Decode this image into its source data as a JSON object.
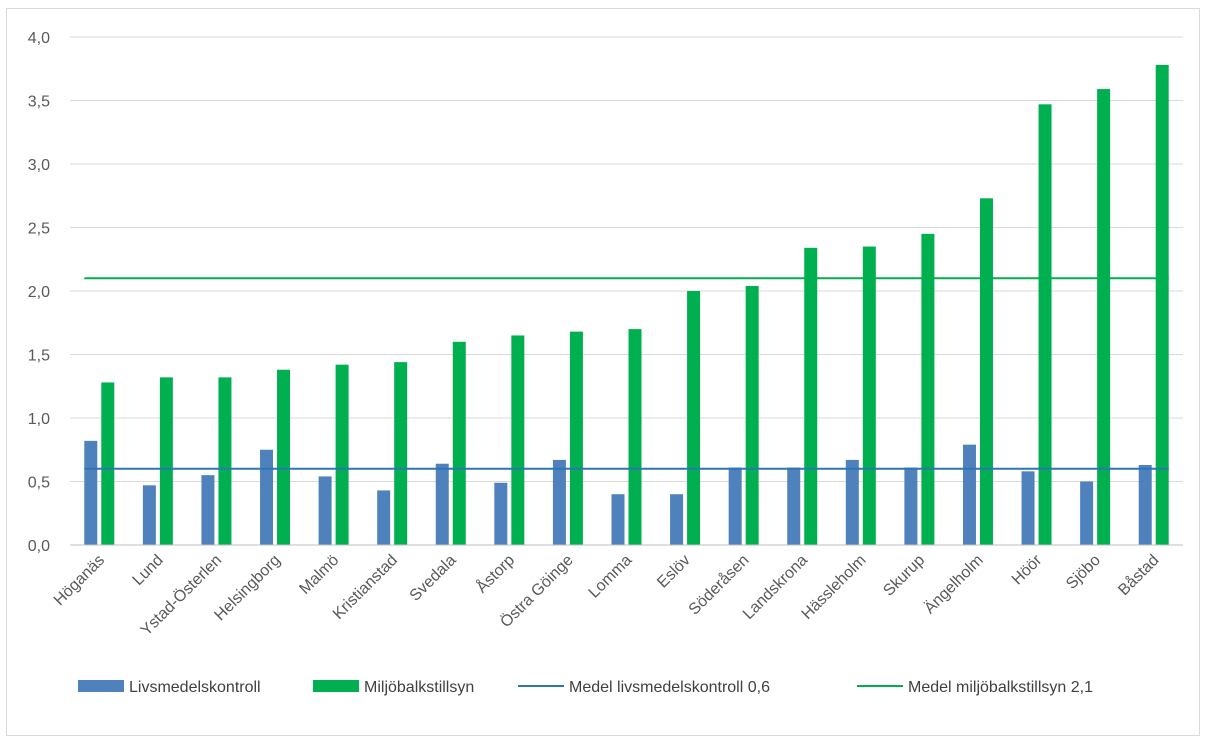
{
  "chart_data": {
    "type": "bar",
    "categories": [
      "Höganäs",
      "Lund",
      "Ystad-Österlen",
      "Helsingborg",
      "Malmö",
      "Kristianstad",
      "Svedala",
      "Åstorp",
      "Östra Göinge",
      "Lomma",
      "Eslöv",
      "Söderåsen",
      "Landskrona",
      "Hässleholm",
      "Skurup",
      "Ängelholm",
      "Höör",
      "Sjöbo",
      "Båstad"
    ],
    "series": [
      {
        "name": "Livsmedelskontroll",
        "color": "#4f81bd",
        "values": [
          0.82,
          0.47,
          0.55,
          0.75,
          0.54,
          0.43,
          0.64,
          0.49,
          0.67,
          0.4,
          0.4,
          0.61,
          0.61,
          0.67,
          0.61,
          0.79,
          0.58,
          0.5,
          0.63
        ]
      },
      {
        "name": "Miljöbalkstillsyn",
        "color": "#00b050",
        "values": [
          1.28,
          1.32,
          1.32,
          1.38,
          1.42,
          1.44,
          1.6,
          1.65,
          1.68,
          1.7,
          2.0,
          2.04,
          2.34,
          2.35,
          2.45,
          2.73,
          3.47,
          3.59,
          3.78
        ]
      }
    ],
    "reference_lines": [
      {
        "name": "Medel livsmedelskontroll 0,6",
        "value": 0.6,
        "color": "#2e75b6"
      },
      {
        "name": "Medel miljöbalkstillsyn 2,1",
        "value": 2.1,
        "color": "#00b050"
      }
    ],
    "ylim": [
      0,
      4.0
    ],
    "yticks": [
      "0,0",
      "0,5",
      "1,0",
      "1,5",
      "2,0",
      "2,5",
      "3,0",
      "3,5",
      "4,0"
    ],
    "grid": true,
    "legend_position": "bottom"
  }
}
